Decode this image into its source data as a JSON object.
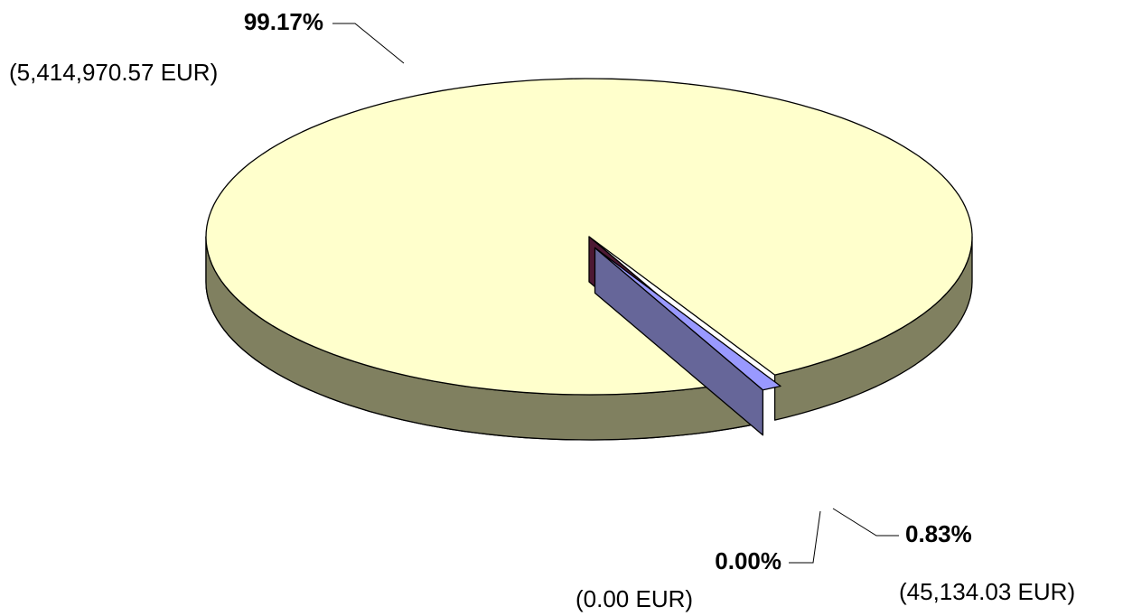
{
  "chart_data": {
    "type": "pie3d",
    "values": [
      99.17,
      0.0,
      0.83
    ],
    "value_labels": [
      "99.17%",
      "0.00%",
      "0.83%"
    ],
    "amount_labels": [
      "(5,414,970.57 EUR)",
      "(0.00 EUR)",
      "(45,134.03 EUR)"
    ],
    "colors": [
      "#ffffcc",
      "#802050",
      "#9999ff"
    ],
    "side_colors": [
      "#808060",
      "#4d1933",
      "#666699"
    ]
  }
}
